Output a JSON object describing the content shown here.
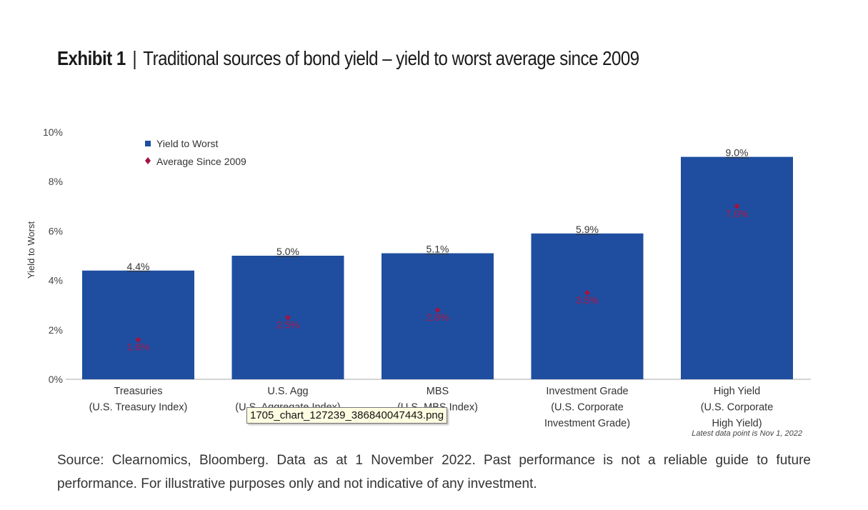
{
  "title": {
    "exhibit": "Exhibit 1",
    "separator": "|",
    "text": "Traditional sources of bond yield – yield to worst average since 2009"
  },
  "chart_data": {
    "type": "bar",
    "ylabel": "Yield to Worst",
    "ylim": [
      0,
      10
    ],
    "yticks": [
      {
        "value": 0,
        "label": "0%"
      },
      {
        "value": 2,
        "label": "2%"
      },
      {
        "value": 4,
        "label": "4%"
      },
      {
        "value": 6,
        "label": "6%"
      },
      {
        "value": 8,
        "label": "8%"
      },
      {
        "value": 10,
        "label": "10%"
      }
    ],
    "categories": [
      {
        "lines": [
          "Treasuries",
          "(U.S. Treasury Index)"
        ]
      },
      {
        "lines": [
          "U.S. Agg",
          "(U.S. Aggregate Index)"
        ]
      },
      {
        "lines": [
          "MBS",
          "(U.S. MBS Index)"
        ]
      },
      {
        "lines": [
          "Investment Grade",
          "(U.S. Corporate",
          "Investment Grade)"
        ]
      },
      {
        "lines": [
          "High Yield",
          "(U.S. Corporate",
          "High Yield)"
        ]
      }
    ],
    "series": [
      {
        "name": "Yield to Worst",
        "color": "#1f4ea0",
        "values": [
          4.4,
          5.0,
          5.1,
          5.9,
          9.0
        ],
        "labels": [
          "4.4%",
          "5.0%",
          "5.1%",
          "5.9%",
          "9.0%"
        ]
      },
      {
        "name": "Average Since 2009",
        "color": "#a3133f",
        "values": [
          1.6,
          2.5,
          2.8,
          3.5,
          7.0
        ],
        "labels": [
          "1.6%",
          "2.5%",
          "2.8%",
          "3.5%",
          "7.0%"
        ]
      }
    ],
    "note": "Latest data point is Nov 1, 2022",
    "grid": false,
    "legend_position": "top-left"
  },
  "source": "Source: Clearnomics, Bloomberg. Data as at 1 November 2022. Past performance is not a reliable guide to future performance. For illustrative purposes only and not indicative of any investment.",
  "tooltip": "1705_chart_127239_386840047443.png"
}
